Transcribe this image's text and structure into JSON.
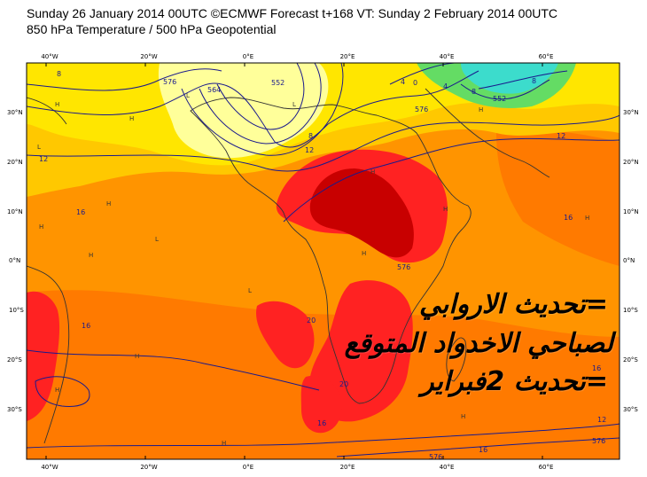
{
  "header": {
    "line1": "Sunday 26 January 2014 00UTC ©ECMWF Forecast t+168 VT: Sunday 2 February 2014 00UTC",
    "line2": "850 hPa Temperature / 500 hPa Geopotential"
  },
  "map": {
    "lon_labels": [
      "40°W",
      "20°W",
      "0°E",
      "20°E",
      "40°E",
      "60°E"
    ],
    "lat_labels": [
      "30°N",
      "20°N",
      "10°N",
      "0°N",
      "10°S",
      "20°S",
      "30°S"
    ],
    "contour_labels": [
      "8",
      "12",
      "16",
      "16",
      "20",
      "20",
      "16",
      "16",
      "16",
      "12",
      "12",
      "16",
      "12",
      "8",
      "4",
      "4",
      "8",
      "8",
      "0"
    ],
    "geopotential_labels": [
      "576",
      "552",
      "564",
      "576",
      "576",
      "552",
      "576",
      "576"
    ],
    "markers": [
      "H",
      "L"
    ],
    "colors": {
      "pale_yellow": "#ffff9a",
      "yellow": "#ffe600",
      "amber": "#ffc800",
      "orange": "#ff9400",
      "dark_orange": "#ff7a00",
      "red": "#ff2222",
      "dark_red": "#c80000",
      "green": "#64dc64",
      "cyan": "#3cdccc"
    }
  },
  "overlay": {
    "line1": "=تحديث الاروابي",
    "line2": "لصباحي الاخدواد المتوقع",
    "line3": "=تحديث 2فبراير"
  }
}
